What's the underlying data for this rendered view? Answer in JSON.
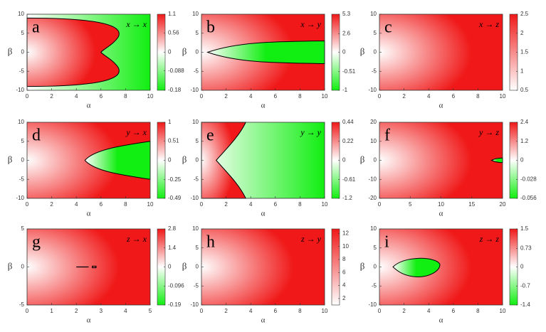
{
  "chart_data": [
    {
      "type": "heatmap",
      "label": "a",
      "annotation": "x → x",
      "xlabel": "α",
      "ylabel": "β",
      "xlim": [
        0,
        10
      ],
      "xticks": [
        0,
        2,
        4,
        6,
        8,
        10
      ],
      "ylim": [
        -10,
        10
      ],
      "yticks": [
        -10,
        -5,
        0,
        5,
        10
      ],
      "clim": [
        -0.18,
        1.1
      ],
      "cticks": [
        1.1,
        0.56,
        0,
        -0.088,
        -0.18
      ],
      "colormap": [
        "#11ee11",
        "#ffffff",
        "#f01818"
      ]
    },
    {
      "type": "heatmap",
      "label": "b",
      "annotation": "x → y",
      "xlabel": "α",
      "ylabel": "β",
      "xlim": [
        0,
        10
      ],
      "xticks": [
        0,
        2,
        4,
        6,
        8,
        10
      ],
      "ylim": [
        -10,
        10
      ],
      "yticks": [
        -10,
        -5,
        0,
        5,
        10
      ],
      "clim": [
        -1,
        5.3
      ],
      "cticks": [
        5.3,
        2.6,
        0,
        -0.51,
        -1
      ],
      "colormap": [
        "#11ee11",
        "#ffffff",
        "#f01818"
      ]
    },
    {
      "type": "heatmap",
      "label": "c",
      "annotation": "x → z",
      "xlabel": "α",
      "ylabel": "β",
      "xlim": [
        0,
        10
      ],
      "xticks": [
        0,
        2,
        4,
        6,
        8,
        10
      ],
      "ylim": [
        -10,
        10
      ],
      "yticks": [
        -10,
        -5,
        0,
        5,
        10
      ],
      "clim": [
        0.5,
        2.5
      ],
      "cticks": [
        2.5,
        2,
        1.5,
        1,
        0.5
      ],
      "colormap": [
        "#11ee11",
        "#ffffff",
        "#f01818"
      ]
    },
    {
      "type": "heatmap",
      "label": "d",
      "annotation": "y → x",
      "xlabel": "α",
      "ylabel": "β",
      "xlim": [
        0,
        10
      ],
      "xticks": [
        0,
        2,
        4,
        6,
        8,
        10
      ],
      "ylim": [
        -10,
        10
      ],
      "yticks": [
        -10,
        -5,
        0,
        5,
        10
      ],
      "clim": [
        -0.49,
        1
      ],
      "cticks": [
        1,
        0.51,
        0,
        -0.25,
        -0.49
      ],
      "colormap": [
        "#11ee11",
        "#ffffff",
        "#f01818"
      ]
    },
    {
      "type": "heatmap",
      "label": "e",
      "annotation": "y → y",
      "xlabel": "α",
      "ylabel": "β",
      "xlim": [
        0,
        10
      ],
      "xticks": [
        0,
        2,
        4,
        6,
        8,
        10
      ],
      "ylim": [
        -10,
        10
      ],
      "yticks": [
        -10,
        -5,
        0,
        5,
        10
      ],
      "clim": [
        -1.2,
        0.44
      ],
      "cticks": [
        0.44,
        0.22,
        0,
        -0.61,
        -1.2
      ],
      "colormap": [
        "#11ee11",
        "#ffffff",
        "#f01818"
      ]
    },
    {
      "type": "heatmap",
      "label": "f",
      "annotation": "y → z",
      "xlabel": "α",
      "ylabel": "β",
      "xlim": [
        0,
        20
      ],
      "xticks": [
        0,
        5,
        10,
        15,
        20
      ],
      "ylim": [
        -20,
        20
      ],
      "yticks": [
        -20,
        -10,
        0,
        10,
        20
      ],
      "clim": [
        -0.056,
        2.4
      ],
      "cticks": [
        2.4,
        1.2,
        0,
        -0.028,
        -0.056
      ],
      "colormap": [
        "#11ee11",
        "#ffffff",
        "#f01818"
      ]
    },
    {
      "type": "heatmap",
      "label": "g",
      "annotation": "z → x",
      "xlabel": "α",
      "ylabel": "β",
      "xlim": [
        0,
        5
      ],
      "xticks": [
        0,
        1,
        2,
        3,
        4,
        5
      ],
      "ylim": [
        -5,
        5
      ],
      "yticks": [
        -5,
        0,
        5
      ],
      "clim": [
        -0.19,
        2.8
      ],
      "cticks": [
        2.8,
        1.4,
        0,
        -0.096,
        -0.19
      ],
      "colormap": [
        "#11ee11",
        "#ffffff",
        "#f01818"
      ]
    },
    {
      "type": "heatmap",
      "label": "h",
      "annotation": "z → y",
      "xlabel": "α",
      "ylabel": "β",
      "xlim": [
        0,
        10
      ],
      "xticks": [
        0,
        2,
        4,
        6,
        8,
        10
      ],
      "ylim": [
        -10,
        10
      ],
      "yticks": [
        -10,
        -5,
        0,
        5,
        10
      ],
      "clim": [
        1,
        12.7
      ],
      "cticks": [
        12,
        10,
        8,
        6,
        4,
        2
      ],
      "colormap": [
        "#11ee11",
        "#ffffff",
        "#f01818"
      ]
    },
    {
      "type": "heatmap",
      "label": "i",
      "annotation": "z → z",
      "xlabel": "α",
      "ylabel": "β",
      "xlim": [
        0,
        10
      ],
      "xticks": [
        0,
        2,
        4,
        6,
        8,
        10
      ],
      "ylim": [
        -10,
        10
      ],
      "yticks": [
        -10,
        -5,
        0,
        5,
        10
      ],
      "clim": [
        -1.4,
        1.5
      ],
      "cticks": [
        1.5,
        0.73,
        0,
        -0.7,
        -1.4
      ],
      "colormap": [
        "#11ee11",
        "#ffffff",
        "#f01818"
      ]
    }
  ]
}
